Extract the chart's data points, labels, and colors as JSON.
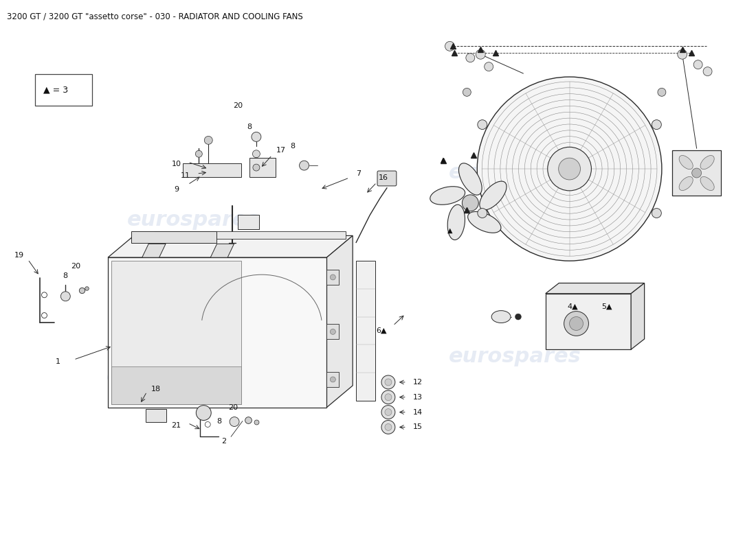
{
  "title": "3200 GT / 3200 GT \"assetto corse\" - 030 - RADIATOR AND COOLING FANS",
  "title_fontsize": 8.5,
  "background_color": "#ffffff",
  "watermark_text": "eurospares",
  "watermark_color": "#c8d4e8",
  "watermark_alpha": 0.45,
  "line_color": "#2a2a2a",
  "label_fontsize": 8.0
}
